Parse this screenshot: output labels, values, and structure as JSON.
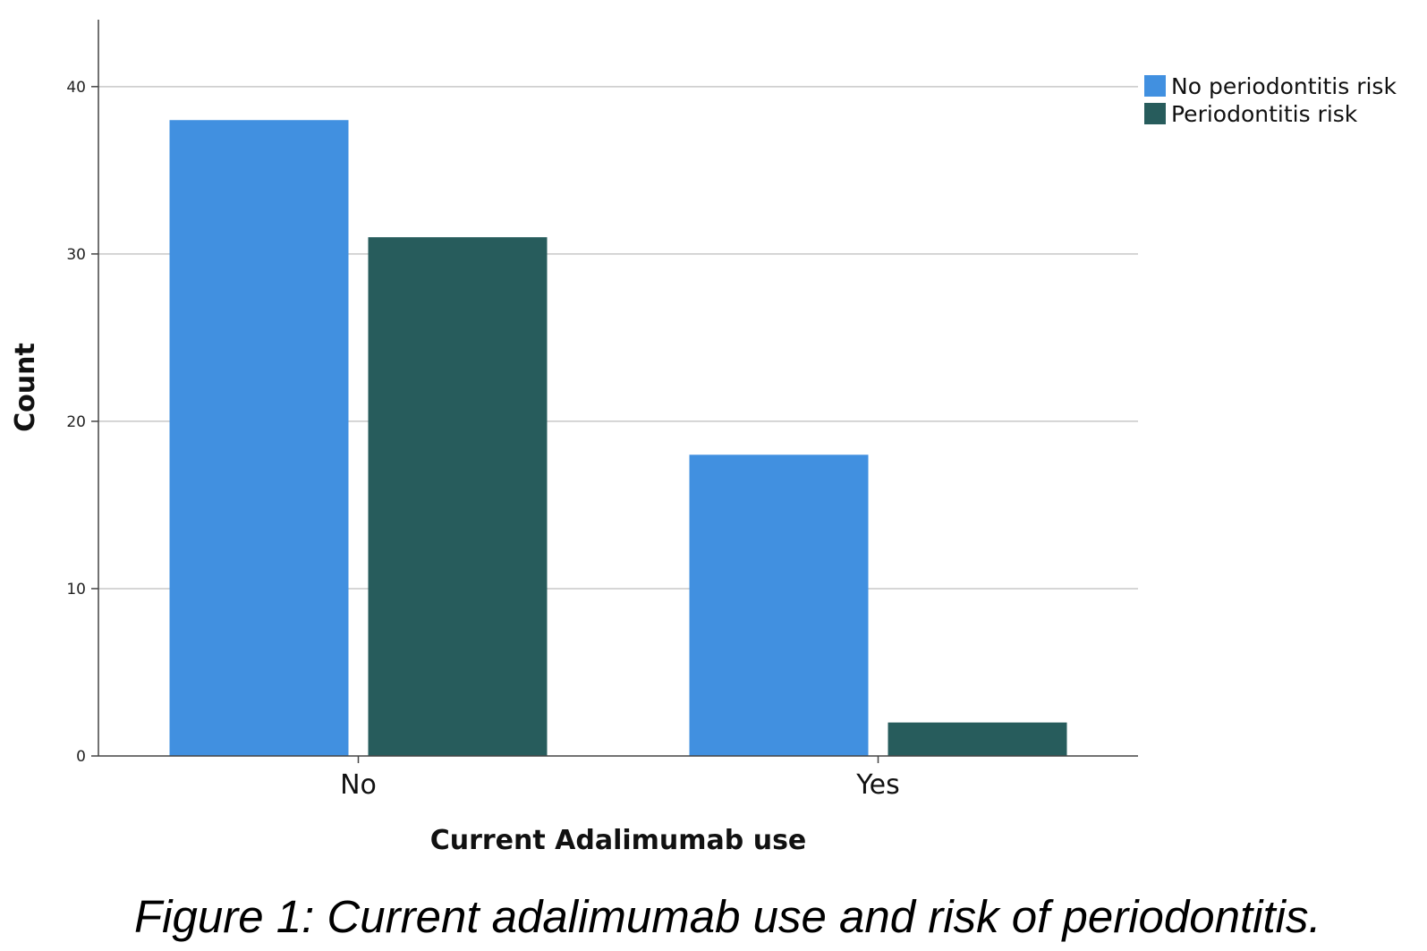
{
  "chart_data": {
    "type": "bar",
    "categories": [
      "No",
      "Yes"
    ],
    "series": [
      {
        "name": "No periodontitis risk",
        "values": [
          38,
          18
        ],
        "color": "#4190e0"
      },
      {
        "name": "Periodontitis risk",
        "values": [
          31,
          2
        ],
        "color": "#275c5c"
      }
    ],
    "title": "",
    "xlabel": "Current Adalimumab use",
    "ylabel": "Count",
    "ylim": [
      0,
      44
    ],
    "yticks": [
      0,
      10,
      20,
      30,
      40
    ],
    "grid": true,
    "legend_position": "top-right"
  },
  "caption": "Figure 1: Current adalimumab use and risk of periodontitis."
}
